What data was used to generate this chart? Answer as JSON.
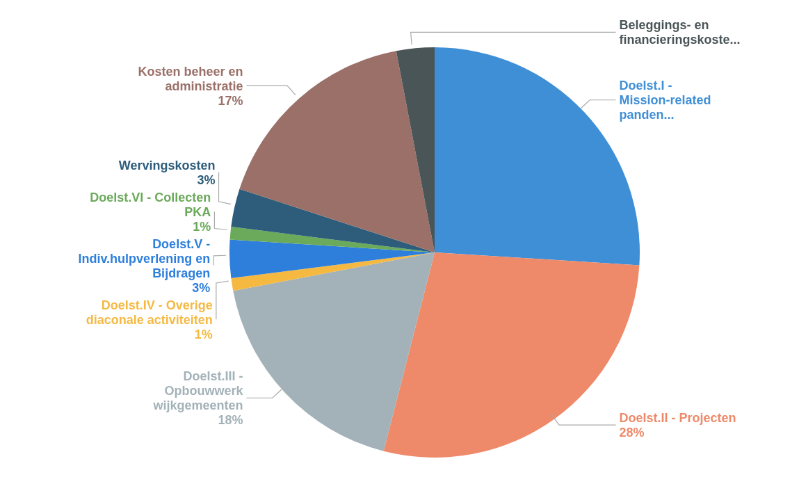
{
  "chart_data": {
    "type": "pie",
    "categories": [
      "Doelst.I - Mission-related panden...",
      "Doelst.II - Projecten",
      "Doelst.III - Opbouwwerk wijkgemeenten",
      "Doelst.IV - Overige diaconale activiteiten",
      "Doelst.V - Indiv.hulpverlening en Bijdragen",
      "Doelst.VI - Collecten PKA",
      "Wervingskosten",
      "Kosten beheer en administratie",
      "Beleggings- en financieringskoste..."
    ],
    "values": [
      26,
      28,
      18,
      1,
      3,
      1,
      3,
      17,
      3
    ],
    "value_labels": [
      null,
      "28%",
      "18%",
      "1%",
      "3%",
      "1%",
      "3%",
      "17%",
      null
    ],
    "colors": [
      "#3f8fd6",
      "#ee8a6a",
      "#a3b2b8",
      "#f5b942",
      "#2e7fdc",
      "#6aaa5a",
      "#2d5d7b",
      "#9a7068",
      "#4a5558"
    ],
    "legend": false
  }
}
